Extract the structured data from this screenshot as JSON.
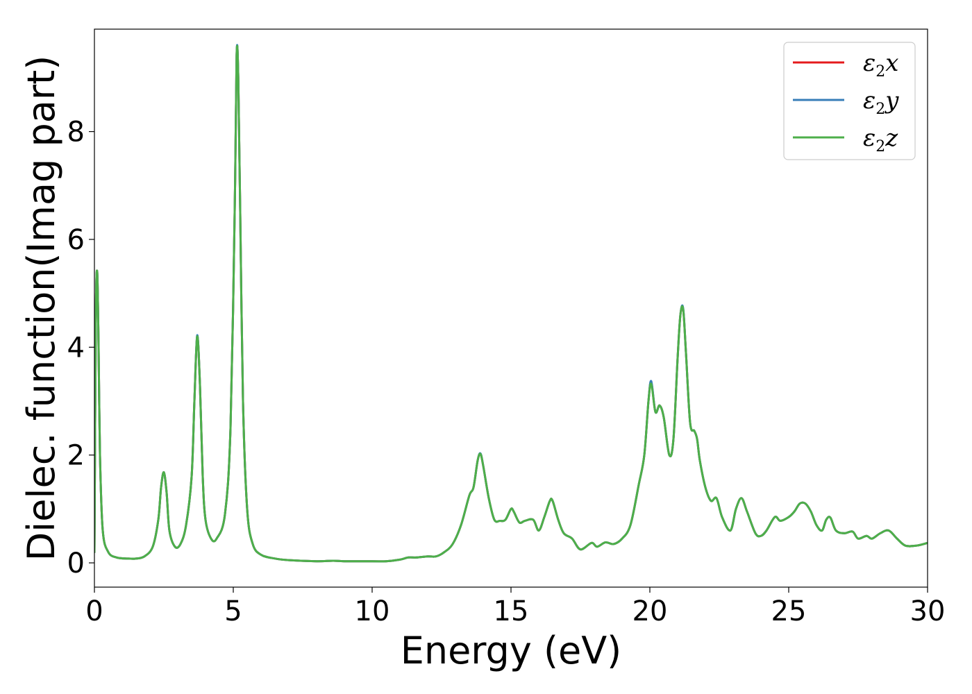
{
  "chart_data": {
    "type": "line",
    "title": "",
    "xlabel": "Energy (eV)",
    "ylabel": "Dielec. function(Imag part)",
    "xlim": [
      0,
      30
    ],
    "ylim": [
      -0.45,
      9.9
    ],
    "xticks": [
      0,
      5,
      10,
      15,
      20,
      25,
      30
    ],
    "xtick_labels": [
      "0",
      "5",
      "10",
      "15",
      "20",
      "25",
      "30"
    ],
    "yticks": [
      0,
      2,
      4,
      6,
      8
    ],
    "ytick_labels": [
      "0",
      "2",
      "4",
      "6",
      "8"
    ],
    "grid": false,
    "legend_position": "top-right",
    "series": [
      {
        "name": "ε₂x",
        "color": "#e41a1c",
        "x": [
          0,
          0.05,
          0.1,
          0.15,
          0.2,
          0.3,
          0.5,
          0.8,
          1.2,
          1.5,
          1.8,
          2.1,
          2.3,
          2.4,
          2.5,
          2.6,
          2.7,
          2.9,
          3.1,
          3.3,
          3.5,
          3.6,
          3.7,
          3.8,
          3.9,
          4.0,
          4.2,
          4.4,
          4.7,
          4.9,
          5.05,
          5.12,
          5.18,
          5.25,
          5.35,
          5.5,
          5.7,
          6.0,
          6.5,
          7.0,
          8.0,
          8.6,
          9.0,
          10.0,
          10.5,
          11.0,
          11.3,
          11.6,
          12.0,
          12.3,
          12.6,
          12.9,
          13.2,
          13.5,
          13.65,
          13.8,
          13.9,
          14.0,
          14.2,
          14.4,
          14.6,
          14.8,
          15.0,
          15.1,
          15.3,
          15.5,
          15.8,
          16.0,
          16.2,
          16.4,
          16.5,
          16.7,
          16.9,
          17.2,
          17.5,
          17.9,
          18.1,
          18.4,
          18.7,
          19.0,
          19.3,
          19.6,
          19.8,
          19.95,
          20.05,
          20.2,
          20.35,
          20.5,
          20.7,
          20.85,
          21.0,
          21.1,
          21.2,
          21.3,
          21.45,
          21.6,
          21.7,
          21.8,
          22.0,
          22.2,
          22.4,
          22.6,
          22.9,
          23.1,
          23.3,
          23.5,
          23.8,
          24.0,
          24.2,
          24.5,
          24.7,
          25.0,
          25.2,
          25.4,
          25.6,
          25.8,
          26.0,
          26.2,
          26.35,
          26.5,
          26.7,
          27.0,
          27.3,
          27.5,
          27.8,
          28.0,
          28.3,
          28.6,
          28.9,
          29.2,
          29.6,
          30.0
        ],
        "y": [
          0.2,
          4.5,
          5.4,
          4.0,
          2.0,
          0.6,
          0.2,
          0.1,
          0.08,
          0.08,
          0.12,
          0.3,
          0.8,
          1.4,
          1.68,
          1.3,
          0.6,
          0.3,
          0.35,
          0.7,
          1.6,
          3.0,
          4.2,
          3.3,
          1.6,
          0.8,
          0.45,
          0.45,
          0.9,
          2.5,
          6.5,
          9.4,
          9.0,
          6.5,
          3.0,
          1.0,
          0.35,
          0.15,
          0.08,
          0.05,
          0.03,
          0.04,
          0.03,
          0.03,
          0.03,
          0.06,
          0.1,
          0.1,
          0.12,
          0.12,
          0.2,
          0.35,
          0.7,
          1.25,
          1.4,
          1.9,
          2.02,
          1.8,
          1.2,
          0.8,
          0.78,
          0.8,
          1.0,
          0.95,
          0.75,
          0.78,
          0.8,
          0.6,
          0.85,
          1.15,
          1.15,
          0.8,
          0.55,
          0.45,
          0.25,
          0.37,
          0.3,
          0.38,
          0.35,
          0.45,
          0.7,
          1.45,
          2.0,
          3.0,
          3.35,
          2.8,
          2.92,
          2.7,
          2.0,
          2.3,
          3.8,
          4.6,
          4.7,
          3.9,
          2.6,
          2.45,
          2.3,
          1.9,
          1.4,
          1.15,
          1.2,
          0.85,
          0.6,
          1.0,
          1.2,
          0.95,
          0.55,
          0.5,
          0.6,
          0.85,
          0.78,
          0.85,
          0.95,
          1.1,
          1.1,
          0.95,
          0.7,
          0.6,
          0.8,
          0.84,
          0.6,
          0.55,
          0.58,
          0.45,
          0.5,
          0.45,
          0.55,
          0.6,
          0.45,
          0.32,
          0.32,
          0.37
        ]
      },
      {
        "name": "ε₂y",
        "color": "#377eb8",
        "x": [
          0,
          0.05,
          0.1,
          0.15,
          0.2,
          0.3,
          0.5,
          0.8,
          1.2,
          1.5,
          1.8,
          2.1,
          2.3,
          2.4,
          2.5,
          2.6,
          2.7,
          2.9,
          3.1,
          3.3,
          3.5,
          3.6,
          3.7,
          3.8,
          3.9,
          4.0,
          4.2,
          4.4,
          4.7,
          4.9,
          5.05,
          5.12,
          5.18,
          5.25,
          5.35,
          5.5,
          5.7,
          6.0,
          6.5,
          7.0,
          8.0,
          8.6,
          9.0,
          10.0,
          10.5,
          11.0,
          11.3,
          11.6,
          12.0,
          12.3,
          12.6,
          12.9,
          13.2,
          13.5,
          13.65,
          13.8,
          13.9,
          14.0,
          14.2,
          14.4,
          14.6,
          14.8,
          15.0,
          15.1,
          15.3,
          15.5,
          15.8,
          16.0,
          16.2,
          16.4,
          16.5,
          16.7,
          16.9,
          17.2,
          17.5,
          17.9,
          18.1,
          18.4,
          18.7,
          19.0,
          19.3,
          19.6,
          19.8,
          19.95,
          20.05,
          20.2,
          20.35,
          20.5,
          20.7,
          20.85,
          21.0,
          21.1,
          21.2,
          21.3,
          21.45,
          21.6,
          21.7,
          21.8,
          22.0,
          22.2,
          22.4,
          22.6,
          22.9,
          23.1,
          23.3,
          23.5,
          23.8,
          24.0,
          24.2,
          24.5,
          24.7,
          25.0,
          25.2,
          25.4,
          25.6,
          25.8,
          26.0,
          26.2,
          26.35,
          26.5,
          26.7,
          27.0,
          27.3,
          27.5,
          27.8,
          28.0,
          28.3,
          28.6,
          28.9,
          29.2,
          29.6,
          30.0
        ],
        "y": [
          0.2,
          4.5,
          5.4,
          4.0,
          2.0,
          0.6,
          0.2,
          0.1,
          0.08,
          0.08,
          0.12,
          0.3,
          0.8,
          1.4,
          1.68,
          1.3,
          0.6,
          0.3,
          0.35,
          0.7,
          1.6,
          3.0,
          4.22,
          3.3,
          1.6,
          0.8,
          0.45,
          0.45,
          0.9,
          2.5,
          6.5,
          9.42,
          9.0,
          6.5,
          3.0,
          1.0,
          0.35,
          0.15,
          0.08,
          0.05,
          0.03,
          0.04,
          0.03,
          0.03,
          0.03,
          0.06,
          0.1,
          0.1,
          0.12,
          0.12,
          0.2,
          0.35,
          0.7,
          1.25,
          1.4,
          1.9,
          2.03,
          1.8,
          1.2,
          0.8,
          0.78,
          0.8,
          1.0,
          0.95,
          0.75,
          0.78,
          0.8,
          0.6,
          0.85,
          1.15,
          1.15,
          0.8,
          0.55,
          0.45,
          0.25,
          0.37,
          0.3,
          0.38,
          0.35,
          0.45,
          0.7,
          1.45,
          2.0,
          3.0,
          3.37,
          2.8,
          2.92,
          2.7,
          2.0,
          2.3,
          3.8,
          4.6,
          4.72,
          3.9,
          2.6,
          2.45,
          2.3,
          1.9,
          1.4,
          1.15,
          1.2,
          0.85,
          0.6,
          1.0,
          1.2,
          0.95,
          0.55,
          0.5,
          0.6,
          0.85,
          0.78,
          0.85,
          0.95,
          1.1,
          1.1,
          0.95,
          0.7,
          0.6,
          0.8,
          0.84,
          0.6,
          0.55,
          0.58,
          0.45,
          0.5,
          0.45,
          0.55,
          0.6,
          0.45,
          0.32,
          0.32,
          0.37
        ]
      },
      {
        "name": "ε₂z",
        "color": "#4daf4a",
        "x": [
          0,
          0.05,
          0.1,
          0.15,
          0.2,
          0.3,
          0.5,
          0.8,
          1.2,
          1.5,
          1.8,
          2.1,
          2.3,
          2.4,
          2.5,
          2.6,
          2.7,
          2.9,
          3.1,
          3.3,
          3.5,
          3.6,
          3.7,
          3.8,
          3.9,
          4.0,
          4.2,
          4.4,
          4.7,
          4.9,
          5.05,
          5.12,
          5.18,
          5.25,
          5.35,
          5.5,
          5.7,
          6.0,
          6.5,
          7.0,
          8.0,
          8.6,
          9.0,
          10.0,
          10.5,
          11.0,
          11.3,
          11.6,
          12.0,
          12.3,
          12.6,
          12.9,
          13.2,
          13.5,
          13.65,
          13.8,
          13.9,
          14.0,
          14.2,
          14.4,
          14.6,
          14.8,
          15.0,
          15.1,
          15.3,
          15.5,
          15.8,
          16.0,
          16.2,
          16.4,
          16.5,
          16.7,
          16.9,
          17.2,
          17.5,
          17.9,
          18.1,
          18.4,
          18.7,
          19.0,
          19.3,
          19.6,
          19.8,
          19.95,
          20.05,
          20.2,
          20.35,
          20.5,
          20.7,
          20.85,
          21.0,
          21.1,
          21.2,
          21.3,
          21.45,
          21.6,
          21.7,
          21.8,
          22.0,
          22.2,
          22.4,
          22.6,
          22.9,
          23.1,
          23.3,
          23.5,
          23.8,
          24.0,
          24.2,
          24.5,
          24.7,
          25.0,
          25.2,
          25.4,
          25.6,
          25.8,
          26.0,
          26.2,
          26.35,
          26.5,
          26.7,
          27.0,
          27.3,
          27.5,
          27.8,
          28.0,
          28.3,
          28.6,
          28.9,
          29.2,
          29.6,
          30.0
        ],
        "y": [
          0.2,
          4.5,
          5.4,
          4.0,
          2.0,
          0.6,
          0.2,
          0.1,
          0.08,
          0.08,
          0.12,
          0.3,
          0.8,
          1.4,
          1.68,
          1.3,
          0.6,
          0.3,
          0.35,
          0.7,
          1.6,
          3.0,
          4.2,
          3.3,
          1.6,
          0.8,
          0.45,
          0.45,
          0.9,
          2.5,
          6.5,
          9.4,
          9.0,
          6.5,
          3.0,
          1.0,
          0.35,
          0.15,
          0.08,
          0.05,
          0.03,
          0.04,
          0.03,
          0.03,
          0.03,
          0.06,
          0.1,
          0.1,
          0.12,
          0.12,
          0.2,
          0.35,
          0.7,
          1.25,
          1.4,
          1.9,
          2.02,
          1.8,
          1.2,
          0.8,
          0.78,
          0.8,
          1.0,
          0.95,
          0.75,
          0.78,
          0.8,
          0.6,
          0.85,
          1.15,
          1.15,
          0.8,
          0.55,
          0.45,
          0.25,
          0.37,
          0.3,
          0.38,
          0.35,
          0.45,
          0.7,
          1.45,
          2.0,
          3.0,
          3.32,
          2.8,
          2.92,
          2.7,
          2.0,
          2.3,
          3.8,
          4.6,
          4.7,
          3.9,
          2.6,
          2.45,
          2.3,
          1.9,
          1.4,
          1.15,
          1.2,
          0.85,
          0.6,
          1.0,
          1.2,
          0.95,
          0.55,
          0.5,
          0.6,
          0.85,
          0.78,
          0.85,
          0.95,
          1.1,
          1.1,
          0.95,
          0.7,
          0.6,
          0.8,
          0.84,
          0.6,
          0.55,
          0.58,
          0.45,
          0.5,
          0.45,
          0.55,
          0.6,
          0.45,
          0.32,
          0.32,
          0.37
        ]
      }
    ]
  }
}
